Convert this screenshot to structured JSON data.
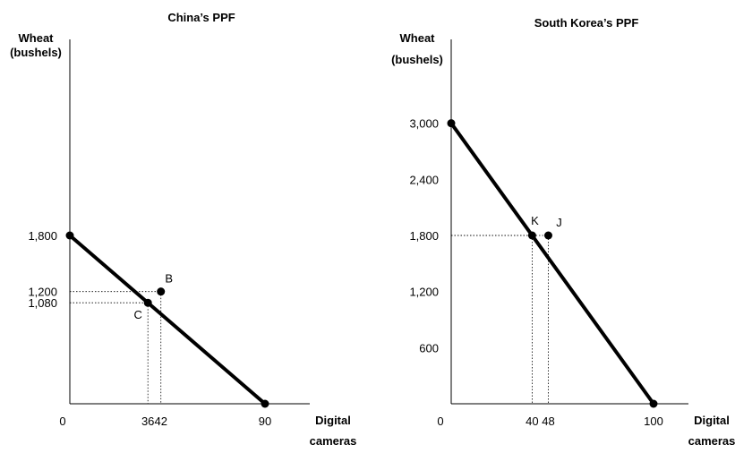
{
  "chart_data": [
    {
      "type": "line",
      "title": "China’s PPF",
      "ylabel_line1": "Wheat",
      "ylabel_line2": "(bushels)",
      "xlabel_line1": "Digital",
      "xlabel_line2": "cameras",
      "origin_label": "0",
      "xlim": [
        0,
        90
      ],
      "ylim": [
        0,
        3600
      ],
      "x_ticks": [
        36,
        42,
        90
      ],
      "x_tick_labels": [
        "36",
        "42",
        "90"
      ],
      "y_ticks": [
        1800,
        1200,
        1080
      ],
      "y_tick_labels": [
        "1,800",
        "1,200",
        "1,080"
      ],
      "series": [
        {
          "values": [
            [
              0,
              1800
            ],
            [
              90,
              0
            ]
          ]
        }
      ],
      "points": [
        {
          "label": "B",
          "x": 42,
          "y": 1200,
          "on_curve": false
        },
        {
          "label": "C",
          "x": 36,
          "y": 1080,
          "on_curve": true
        }
      ],
      "grid": false
    },
    {
      "type": "line",
      "title": "South Korea’s PPF",
      "ylabel_line1": "Wheat",
      "ylabel_line2": "(bushels)",
      "xlabel_line1": "Digital",
      "xlabel_line2": "cameras",
      "origin_label": "0",
      "xlim": [
        0,
        100
      ],
      "ylim": [
        0,
        3600
      ],
      "x_ticks": [
        40,
        48,
        100
      ],
      "x_tick_labels": [
        "40",
        "48",
        "100"
      ],
      "y_ticks": [
        3000,
        2400,
        1800,
        1200,
        600
      ],
      "y_tick_labels": [
        "3,000",
        "2,400",
        "1,800",
        "1,200",
        "600"
      ],
      "series": [
        {
          "values": [
            [
              0,
              3000
            ],
            [
              100,
              0
            ]
          ]
        }
      ],
      "points": [
        {
          "label": "K",
          "x": 40,
          "y": 1800,
          "on_curve": true
        },
        {
          "label": "J",
          "x": 48,
          "y": 1800,
          "on_curve": false
        }
      ],
      "grid": false
    }
  ]
}
